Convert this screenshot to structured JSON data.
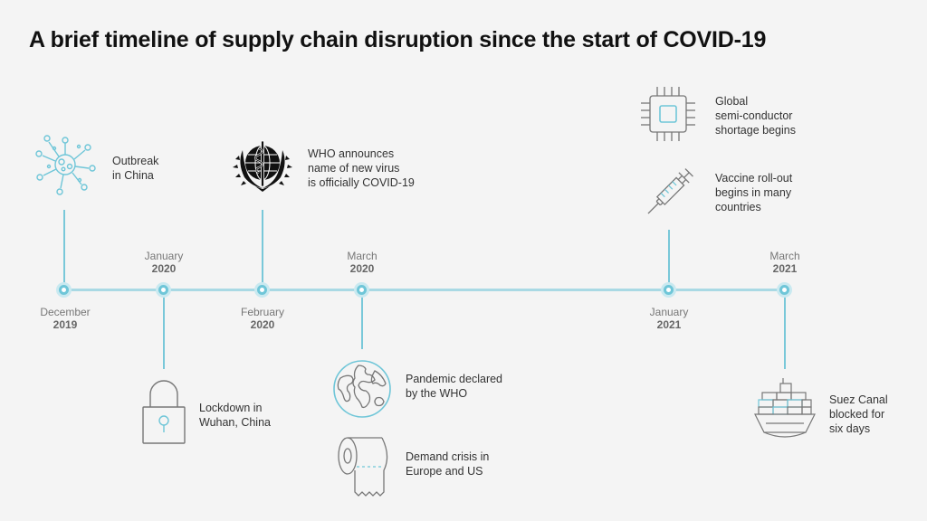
{
  "title": "A brief timeline of supply chain disruption since the start of COVID-19",
  "accent": "#6fc6d8",
  "dates": [
    {
      "month": "December",
      "year": "2019"
    },
    {
      "month": "January",
      "year": "2020"
    },
    {
      "month": "February",
      "year": "2020"
    },
    {
      "month": "March",
      "year": "2020"
    },
    {
      "month": "January",
      "year": "2021"
    },
    {
      "month": "March",
      "year": "2021"
    }
  ],
  "events": {
    "outbreak": {
      "text": "Outbreak\nin China",
      "icon": "virus-icon"
    },
    "lockdown": {
      "text": "Lockdown in\nWuhan, China",
      "icon": "padlock-icon"
    },
    "who_name": {
      "text": "WHO announces\nname of new virus\nis officially COVID-19",
      "icon": "who-emblem-icon"
    },
    "pandemic": {
      "text": "Pandemic declared\nby the WHO",
      "icon": "globe-icon"
    },
    "demand": {
      "text": "Demand crisis in\nEurope and US",
      "icon": "toilet-roll-icon"
    },
    "chip": {
      "text": "Global\nsemi-conductor\nshortage begins",
      "icon": "microchip-icon"
    },
    "vaccine": {
      "text": "Vaccine roll-out\nbegins in many\ncountries",
      "icon": "syringe-icon"
    },
    "suez": {
      "text": "Suez Canal\nblocked for\nsix days",
      "icon": "container-ship-icon"
    }
  }
}
